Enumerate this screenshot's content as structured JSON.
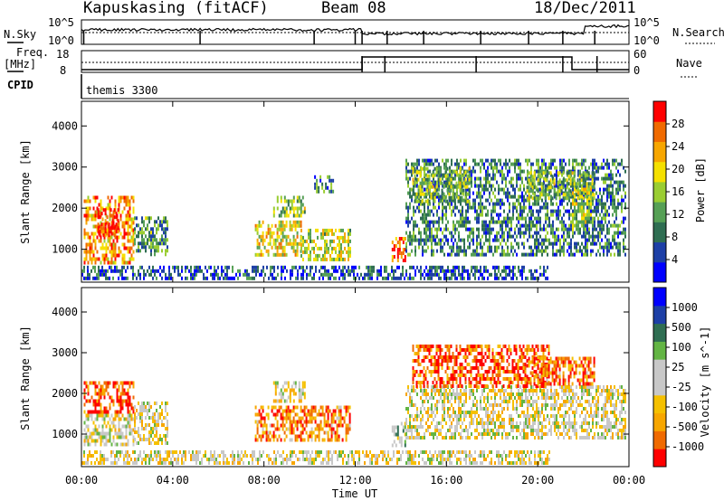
{
  "header": {
    "station": "Kapuskasing (fitACF)",
    "beam": "Beam 08",
    "date": "18/Dec/2011"
  },
  "params": {
    "nsky_label": "N.Sky",
    "nsky_ticks": [
      "10^5",
      "10^0"
    ],
    "nsearch_label": "N.Search",
    "nsearch_ticks": [
      "10^5",
      "10^0"
    ],
    "freq_label": "Freq.",
    "freq_unit": "[MHz]",
    "freq_ticks": [
      "18",
      "8"
    ],
    "nave_label": "Nave",
    "nave_ticks": [
      "60",
      "0"
    ],
    "cpid_label": "CPID",
    "cpid_value": "themis 3300"
  },
  "time_axis": {
    "label": "Time UT",
    "ticks": [
      "00:00",
      "04:00",
      "08:00",
      "12:00",
      "16:00",
      "20:00",
      "00:00"
    ]
  },
  "chart_data": [
    {
      "type": "heatmap",
      "ylabel": "Slant Range [km]",
      "yticks": [
        1000,
        2000,
        3000,
        4000
      ],
      "ylim": [
        200,
        4600
      ],
      "xlim_hours": [
        0,
        24
      ],
      "colorbar": {
        "label": "Power [dB]",
        "ticks": [
          "28",
          "24",
          "20",
          "16",
          "12",
          "8",
          "4"
        ],
        "colors": [
          "#0000ff",
          "#1d3fa6",
          "#2f6e52",
          "#56a055",
          "#9acd32",
          "#f5e000",
          "#f7a600",
          "#f06a00",
          "#ff0000"
        ]
      },
      "regions": [
        {
          "t0": 0.1,
          "t1": 2.3,
          "r0": 700,
          "r1": 2300,
          "level": 0.75
        },
        {
          "t0": 0.7,
          "t1": 1.6,
          "r0": 1300,
          "r1": 2000,
          "level": 0.95
        },
        {
          "t0": 2.3,
          "t1": 3.8,
          "r0": 900,
          "r1": 1800,
          "level": 0.35
        },
        {
          "t0": 7.6,
          "t1": 9.6,
          "r0": 900,
          "r1": 1700,
          "level": 0.6
        },
        {
          "t0": 9.6,
          "t1": 11.8,
          "r0": 750,
          "r1": 1500,
          "level": 0.55
        },
        {
          "t0": 8.4,
          "t1": 9.8,
          "r0": 1800,
          "r1": 2300,
          "level": 0.45
        },
        {
          "t0": 10.2,
          "t1": 11.0,
          "r0": 2400,
          "r1": 2800,
          "level": 0.3
        },
        {
          "t0": 13.6,
          "t1": 14.2,
          "r0": 750,
          "r1": 1300,
          "level": 0.8
        },
        {
          "t0": 14.2,
          "t1": 23.8,
          "r0": 900,
          "r1": 3200,
          "level": 0.3
        },
        {
          "t0": 14.5,
          "t1": 17.0,
          "r0": 2200,
          "r1": 3000,
          "level": 0.45
        },
        {
          "t0": 19.5,
          "t1": 22.5,
          "r0": 2200,
          "r1": 2900,
          "level": 0.45
        },
        {
          "t0": 21.5,
          "t1": 22.3,
          "r0": 1500,
          "r1": 2500,
          "level": 0.55
        },
        {
          "t0": 0.0,
          "t1": 20.5,
          "r0": 250,
          "r1": 600,
          "level": 0.2
        }
      ]
    },
    {
      "type": "heatmap",
      "ylabel": "Slant Range [km]",
      "yticks": [
        1000,
        2000,
        3000,
        4000
      ],
      "ylim": [
        200,
        4600
      ],
      "xlim_hours": [
        0,
        24
      ],
      "colorbar": {
        "label": "Velocity [m s^-1]",
        "ticks": [
          "1000",
          "500",
          "100",
          "25",
          "-25",
          "-100",
          "-500",
          "-1000"
        ],
        "colors": [
          "#ff0000",
          "#f06a00",
          "#f7a600",
          "#f5c000",
          "#c8c8c8",
          "#c8c8c8",
          "#63b544",
          "#2f6e52",
          "#1d3fa6",
          "#0000ff"
        ]
      },
      "regions": [
        {
          "t0": 0.1,
          "t1": 2.3,
          "r0": 1500,
          "r1": 2300,
          "level": 0.1
        },
        {
          "t0": 0.1,
          "t1": 2.3,
          "r0": 700,
          "r1": 1500,
          "level": 0.45
        },
        {
          "t0": 2.3,
          "t1": 3.8,
          "r0": 800,
          "r1": 1800,
          "level": 0.45
        },
        {
          "t0": 7.6,
          "t1": 11.8,
          "r0": 850,
          "r1": 1700,
          "level": 0.2
        },
        {
          "t0": 8.4,
          "t1": 9.8,
          "r0": 1800,
          "r1": 2300,
          "level": 0.45
        },
        {
          "t0": 13.6,
          "t1": 14.2,
          "r0": 750,
          "r1": 1300,
          "level": 0.55
        },
        {
          "t0": 14.2,
          "t1": 23.8,
          "r0": 900,
          "r1": 2200,
          "level": 0.45
        },
        {
          "t0": 14.5,
          "t1": 20.5,
          "r0": 2200,
          "r1": 3200,
          "level": 0.12
        },
        {
          "t0": 19.5,
          "t1": 22.5,
          "r0": 2200,
          "r1": 2900,
          "level": 0.2
        },
        {
          "t0": 0.0,
          "t1": 20.5,
          "r0": 250,
          "r1": 600,
          "level": 0.45
        }
      ]
    }
  ]
}
